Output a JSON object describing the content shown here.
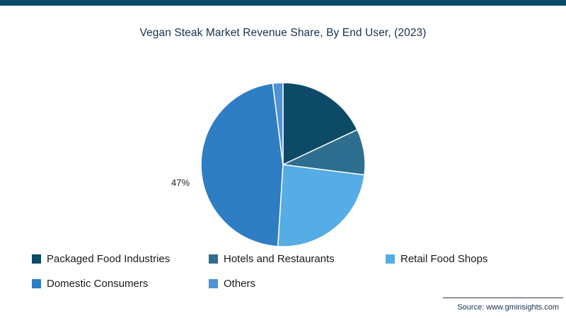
{
  "page": {
    "accent_color": "#0d4a66",
    "source": "Source: www.gminsights.com"
  },
  "chart_data": {
    "type": "pie",
    "title": "Vegan Steak Market Revenue Share, By End User, (2023)",
    "legend_position": "bottom",
    "data_labels": [
      "47%"
    ],
    "slices": [
      {
        "label": "Packaged Food Industries",
        "value": 18,
        "color": "#0d4a66"
      },
      {
        "label": "Hotels and Restaurants",
        "value": 9,
        "color": "#2e6e8e"
      },
      {
        "label": "Retail Food Shops",
        "value": 24,
        "color": "#56ace4"
      },
      {
        "label": "Domestic Consumers",
        "value": 47,
        "color": "#2f7dc3",
        "data_label": "47%"
      },
      {
        "label": "Others",
        "value": 2,
        "color": "#4f93d6"
      }
    ]
  }
}
